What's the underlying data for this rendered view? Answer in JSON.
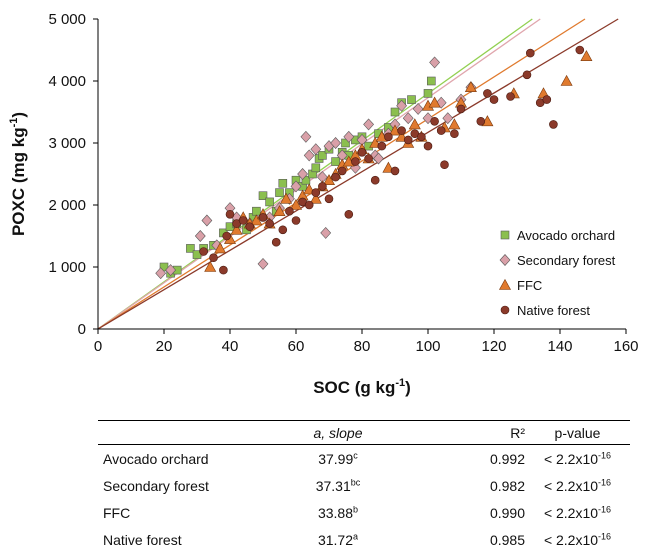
{
  "chart_data": {
    "type": "scatter",
    "ylabel": "POXC (mg kg",
    "ylabel_sup": "-1",
    "ylabel_end": ")",
    "xlabel": "SOC (g kg",
    "xlabel_sup": "-1",
    "xlabel_end": ")",
    "xlim": [
      0,
      160
    ],
    "ylim": [
      0,
      5000
    ],
    "x_ticks": [
      0,
      20,
      40,
      60,
      80,
      100,
      120,
      140,
      160
    ],
    "y_ticks": [
      0,
      1000,
      2000,
      3000,
      4000,
      5000
    ],
    "x_tick_labels": [
      "0",
      "20",
      "40",
      "60",
      "80",
      "100",
      "120",
      "140",
      "160"
    ],
    "y_tick_labels": [
      "0",
      "1 000",
      "2 000",
      "3 000",
      "4 000",
      "5 000"
    ],
    "grid": false,
    "legend_position": "bottom-right",
    "series": [
      {
        "name": "Avocado orchard",
        "marker": "square",
        "color": "#8bbf4e",
        "line_color": "#92d050",
        "slope": 37.99,
        "points": [
          [
            20,
            1000
          ],
          [
            22,
            900
          ],
          [
            24,
            950
          ],
          [
            28,
            1300
          ],
          [
            30,
            1200
          ],
          [
            32,
            1300
          ],
          [
            35,
            1350
          ],
          [
            38,
            1550
          ],
          [
            40,
            1650
          ],
          [
            42,
            1700
          ],
          [
            45,
            1600
          ],
          [
            47,
            1800
          ],
          [
            48,
            1900
          ],
          [
            50,
            2150
          ],
          [
            52,
            2050
          ],
          [
            54,
            1900
          ],
          [
            55,
            2200
          ],
          [
            56,
            2350
          ],
          [
            58,
            2200
          ],
          [
            60,
            2400
          ],
          [
            62,
            2300
          ],
          [
            63,
            2400
          ],
          [
            65,
            2500
          ],
          [
            66,
            2600
          ],
          [
            67,
            2750
          ],
          [
            68,
            2800
          ],
          [
            70,
            2900
          ],
          [
            72,
            2700
          ],
          [
            74,
            2850
          ],
          [
            75,
            3000
          ],
          [
            76,
            2800
          ],
          [
            78,
            3050
          ],
          [
            80,
            3100
          ],
          [
            82,
            2950
          ],
          [
            85,
            3150
          ],
          [
            88,
            3250
          ],
          [
            90,
            3500
          ],
          [
            92,
            3650
          ],
          [
            95,
            3700
          ],
          [
            100,
            3800
          ],
          [
            101,
            4000
          ]
        ]
      },
      {
        "name": "Secondary forest",
        "marker": "diamond",
        "color": "#d9a0a8",
        "line_color": "#e0a6ad",
        "slope": 37.31,
        "points": [
          [
            19,
            900
          ],
          [
            22,
            950
          ],
          [
            31,
            1500
          ],
          [
            33,
            1750
          ],
          [
            36,
            1350
          ],
          [
            40,
            1950
          ],
          [
            42,
            1800
          ],
          [
            46,
            1700
          ],
          [
            50,
            1050
          ],
          [
            52,
            1800
          ],
          [
            55,
            1950
          ],
          [
            58,
            2100
          ],
          [
            60,
            2300
          ],
          [
            62,
            2500
          ],
          [
            63,
            3100
          ],
          [
            64,
            2800
          ],
          [
            66,
            2900
          ],
          [
            68,
            2450
          ],
          [
            69,
            1550
          ],
          [
            70,
            2950
          ],
          [
            72,
            3000
          ],
          [
            74,
            2800
          ],
          [
            76,
            3100
          ],
          [
            78,
            2600
          ],
          [
            80,
            3050
          ],
          [
            82,
            3300
          ],
          [
            84,
            2800
          ],
          [
            85,
            2750
          ],
          [
            88,
            3150
          ],
          [
            90,
            3300
          ],
          [
            92,
            3600
          ],
          [
            94,
            3400
          ],
          [
            97,
            3550
          ],
          [
            100,
            3400
          ],
          [
            102,
            4300
          ],
          [
            104,
            3650
          ],
          [
            106,
            3400
          ],
          [
            110,
            3700
          ],
          [
            113,
            3900
          ]
        ]
      },
      {
        "name": "FFC",
        "marker": "triangle",
        "color": "#e07a2e",
        "line_color": "#e07a2e",
        "slope": 33.88,
        "points": [
          [
            34,
            1000
          ],
          [
            37,
            1300
          ],
          [
            40,
            1450
          ],
          [
            42,
            1600
          ],
          [
            44,
            1800
          ],
          [
            46,
            1700
          ],
          [
            48,
            1750
          ],
          [
            50,
            1850
          ],
          [
            52,
            1700
          ],
          [
            55,
            1900
          ],
          [
            57,
            2100
          ],
          [
            60,
            2000
          ],
          [
            62,
            2150
          ],
          [
            64,
            2250
          ],
          [
            66,
            2100
          ],
          [
            68,
            2300
          ],
          [
            70,
            2400
          ],
          [
            72,
            2500
          ],
          [
            74,
            2650
          ],
          [
            76,
            2700
          ],
          [
            78,
            2800
          ],
          [
            80,
            2900
          ],
          [
            82,
            2750
          ],
          [
            84,
            3000
          ],
          [
            86,
            3100
          ],
          [
            88,
            2600
          ],
          [
            90,
            3200
          ],
          [
            92,
            3100
          ],
          [
            94,
            3000
          ],
          [
            96,
            3300
          ],
          [
            98,
            3100
          ],
          [
            100,
            3600
          ],
          [
            102,
            3650
          ],
          [
            105,
            3250
          ],
          [
            108,
            3300
          ],
          [
            110,
            3650
          ],
          [
            113,
            3900
          ],
          [
            118,
            3350
          ],
          [
            126,
            3800
          ],
          [
            135,
            3800
          ],
          [
            142,
            4000
          ],
          [
            148,
            4400
          ]
        ]
      },
      {
        "name": "Native forest",
        "marker": "circle",
        "color": "#8b3a2a",
        "line_color": "#8b3a2a",
        "slope": 31.72,
        "points": [
          [
            32,
            1250
          ],
          [
            35,
            1150
          ],
          [
            38,
            950
          ],
          [
            39,
            1500
          ],
          [
            40,
            1850
          ],
          [
            42,
            1700
          ],
          [
            44,
            1750
          ],
          [
            46,
            1650
          ],
          [
            50,
            1800
          ],
          [
            52,
            1700
          ],
          [
            54,
            1400
          ],
          [
            56,
            1600
          ],
          [
            58,
            1900
          ],
          [
            60,
            1750
          ],
          [
            62,
            2050
          ],
          [
            64,
            2000
          ],
          [
            66,
            2200
          ],
          [
            68,
            2300
          ],
          [
            70,
            2100
          ],
          [
            72,
            2450
          ],
          [
            74,
            2550
          ],
          [
            76,
            1850
          ],
          [
            78,
            2700
          ],
          [
            80,
            2850
          ],
          [
            82,
            2750
          ],
          [
            84,
            2400
          ],
          [
            86,
            2950
          ],
          [
            88,
            3100
          ],
          [
            90,
            2550
          ],
          [
            92,
            3200
          ],
          [
            94,
            3050
          ],
          [
            96,
            3150
          ],
          [
            98,
            3100
          ],
          [
            100,
            2950
          ],
          [
            102,
            3350
          ],
          [
            104,
            3200
          ],
          [
            105,
            2650
          ],
          [
            108,
            3150
          ],
          [
            110,
            3550
          ],
          [
            116,
            3350
          ],
          [
            118,
            3800
          ],
          [
            120,
            3700
          ],
          [
            125,
            3750
          ],
          [
            130,
            4100
          ],
          [
            131,
            4450
          ],
          [
            134,
            3650
          ],
          [
            136,
            3700
          ],
          [
            138,
            3300
          ],
          [
            146,
            4500
          ]
        ]
      }
    ]
  },
  "table": {
    "headers": {
      "name": "",
      "slope_main": "a, slope",
      "r2": "R²",
      "pvalue": "p-value"
    },
    "rows": [
      {
        "name": "Avocado orchard",
        "slope": "37.99",
        "sup": "c",
        "r2": "0.992",
        "p_main": "< 2.2x10",
        "p_sup": "-16"
      },
      {
        "name": "Secondary forest",
        "slope": "37.31",
        "sup": "bc",
        "r2": "0.982",
        "p_main": "< 2.2x10",
        "p_sup": "-16"
      },
      {
        "name": "FFC",
        "slope": "33.88",
        "sup": "b",
        "r2": "0.990",
        "p_main": "< 2.2x10",
        "p_sup": "-16"
      },
      {
        "name": "Native forest",
        "slope": "31.72",
        "sup": "a",
        "r2": "0.985",
        "p_main": "< 2.2x10",
        "p_sup": "-16"
      }
    ]
  }
}
